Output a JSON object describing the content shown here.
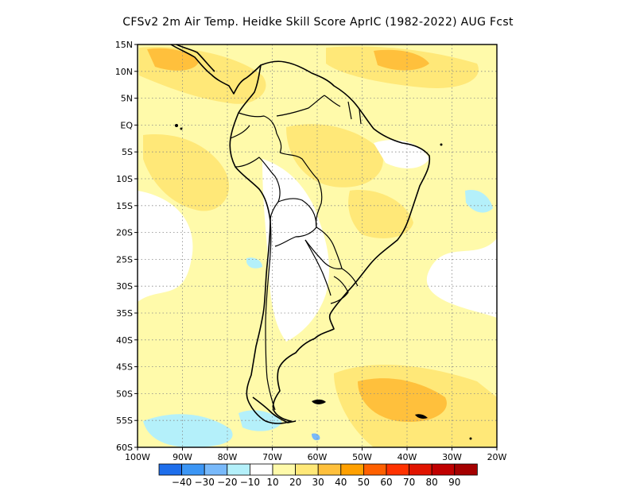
{
  "title": "CFSv2  2m Air Temp. Heidke Skill Score AprIC (1982-2022) AUG Fcst",
  "map": {
    "lat_range": [
      -60,
      15
    ],
    "lon_range": [
      -100,
      -20
    ],
    "lat_ticks": [
      "15N",
      "10N",
      "5N",
      "EQ",
      "5S",
      "10S",
      "15S",
      "20S",
      "25S",
      "30S",
      "35S",
      "40S",
      "45S",
      "50S",
      "55S",
      "60S"
    ],
    "lon_ticks": [
      "100W",
      "90W",
      "80W",
      "70W",
      "60W",
      "50W",
      "40W",
      "30W",
      "20W"
    ],
    "grid": true
  },
  "legend": {
    "colors": [
      "#1e6eeb",
      "#3c96f5",
      "#78b9fa",
      "#b4f0fa",
      "#ffffff",
      "#fffaaa",
      "#ffe878",
      "#ffc03c",
      "#ffa000",
      "#ff6000",
      "#ff3200",
      "#e11400",
      "#c00000",
      "#a50000"
    ],
    "labels": [
      "-40",
      "-30",
      "-20",
      "-10",
      "10",
      "20",
      "30",
      "40",
      "50",
      "60",
      "70",
      "80",
      "90"
    ]
  }
}
